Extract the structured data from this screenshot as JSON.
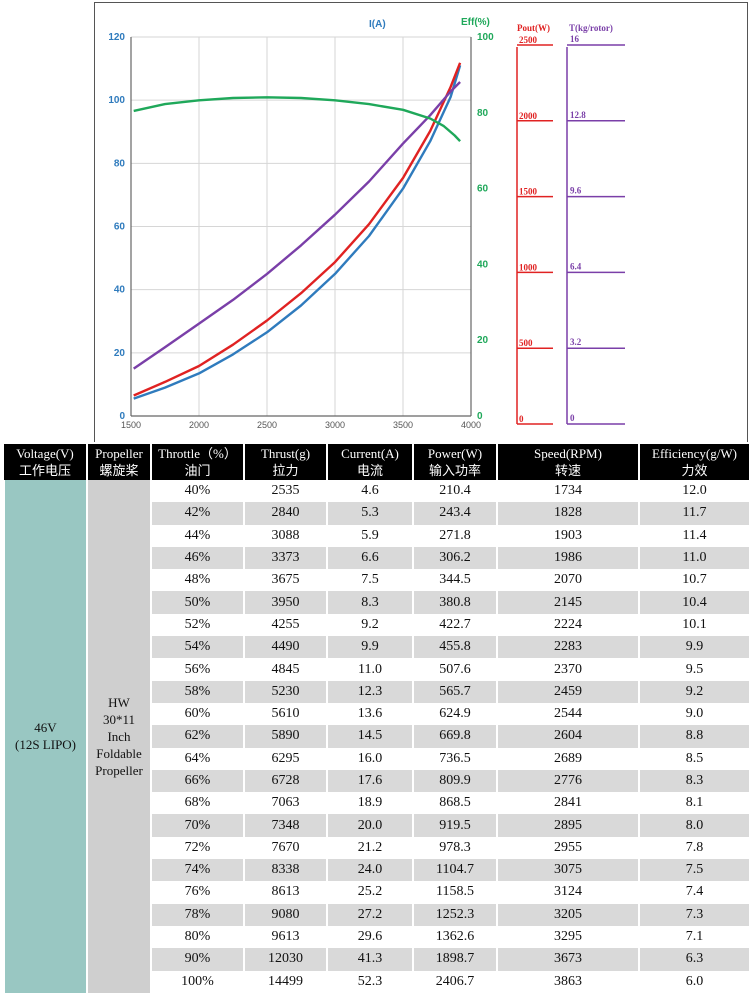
{
  "chart_data": {
    "type": "line",
    "x_axis": {
      "ticks": [
        1500,
        2000,
        2500,
        3000,
        3500,
        4000
      ],
      "range": [
        1500,
        4000
      ]
    },
    "left_axis": {
      "label": "I(A)",
      "ticks": [
        0,
        20,
        40,
        60,
        80,
        100,
        120
      ],
      "range": [
        0,
        120
      ],
      "color": "#2f7bbd"
    },
    "right_axis": {
      "label": "Eff(%)",
      "ticks": [
        0,
        20,
        40,
        60,
        80,
        100
      ],
      "range": [
        0,
        100
      ],
      "color": "#1fa85a"
    },
    "power_axis": {
      "label": "Pout(W)",
      "ticks": [
        0,
        500,
        1000,
        1500,
        2000,
        2500
      ],
      "range": [
        0,
        2500
      ],
      "color": "#e02222"
    },
    "thrust_axis": {
      "label": "T(kg/rotor)",
      "ticks": [
        "0",
        "3.2",
        "6.4",
        "9.6",
        "12.8",
        "16"
      ],
      "range": [
        0,
        16
      ],
      "color": "#7a3fa8"
    },
    "grid": true,
    "series": [
      {
        "axis": "left",
        "color": "#2f7bbd",
        "x": [
          1520,
          1750,
          2000,
          2250,
          2500,
          2750,
          3000,
          3250,
          3500,
          3700,
          3850,
          3920
        ],
        "y": [
          5.5,
          9,
          13.5,
          19.5,
          26.5,
          35,
          45,
          57,
          72,
          87,
          101,
          111
        ]
      },
      {
        "axis": "power",
        "color": "#e02222",
        "x": [
          1520,
          1750,
          2000,
          2250,
          2500,
          2750,
          3000,
          3250,
          3500,
          3700,
          3850,
          3920
        ],
        "y": [
          135,
          225,
          330,
          470,
          630,
          810,
          1015,
          1265,
          1570,
          1880,
          2170,
          2330
        ]
      },
      {
        "axis": "thrust",
        "color": "#7a3fa8",
        "x": [
          1520,
          1750,
          2000,
          2250,
          2500,
          2750,
          3000,
          3250,
          3500,
          3700,
          3850,
          3920
        ],
        "y": [
          2.0,
          2.9,
          3.9,
          4.9,
          6.0,
          7.2,
          8.5,
          9.9,
          11.5,
          12.7,
          13.7,
          14.1
        ]
      },
      {
        "axis": "right",
        "color": "#1fa85a",
        "x": [
          1520,
          1750,
          2000,
          2250,
          2500,
          2750,
          3000,
          3250,
          3500,
          3700,
          3800,
          3880,
          3920
        ],
        "y": [
          80.5,
          82.3,
          83.3,
          83.9,
          84.1,
          83.9,
          83.3,
          82.3,
          80.8,
          78.5,
          76.5,
          74.0,
          72.5
        ]
      }
    ]
  },
  "table": {
    "headers": [
      [
        "Voltage(V)",
        "工作电压"
      ],
      [
        "Propeller",
        "螺旋桨"
      ],
      [
        "Throttle（%）",
        "油门"
      ],
      [
        "Thrust(g)",
        "拉力"
      ],
      [
        "Current(A)",
        "电流"
      ],
      [
        "Power(W)",
        "输入功率"
      ],
      [
        "Speed(RPM)",
        "转速"
      ],
      [
        "Efficiency(g/W)",
        "力效"
      ]
    ],
    "voltage": [
      "46V",
      "(12S LIPO)"
    ],
    "propeller": [
      "HW",
      "30*11",
      "Inch",
      "Foldable",
      "Propeller"
    ],
    "rows": [
      [
        "40%",
        "2535",
        "4.6",
        "210.4",
        "1734",
        "12.0"
      ],
      [
        "42%",
        "2840",
        "5.3",
        "243.4",
        "1828",
        "11.7"
      ],
      [
        "44%",
        "3088",
        "5.9",
        "271.8",
        "1903",
        "11.4"
      ],
      [
        "46%",
        "3373",
        "6.6",
        "306.2",
        "1986",
        "11.0"
      ],
      [
        "48%",
        "3675",
        "7.5",
        "344.5",
        "2070",
        "10.7"
      ],
      [
        "50%",
        "3950",
        "8.3",
        "380.8",
        "2145",
        "10.4"
      ],
      [
        "52%",
        "4255",
        "9.2",
        "422.7",
        "2224",
        "10.1"
      ],
      [
        "54%",
        "4490",
        "9.9",
        "455.8",
        "2283",
        "9.9"
      ],
      [
        "56%",
        "4845",
        "11.0",
        "507.6",
        "2370",
        "9.5"
      ],
      [
        "58%",
        "5230",
        "12.3",
        "565.7",
        "2459",
        "9.2"
      ],
      [
        "60%",
        "5610",
        "13.6",
        "624.9",
        "2544",
        "9.0"
      ],
      [
        "62%",
        "5890",
        "14.5",
        "669.8",
        "2604",
        "8.8"
      ],
      [
        "64%",
        "6295",
        "16.0",
        "736.5",
        "2689",
        "8.5"
      ],
      [
        "66%",
        "6728",
        "17.6",
        "809.9",
        "2776",
        "8.3"
      ],
      [
        "68%",
        "7063",
        "18.9",
        "868.5",
        "2841",
        "8.1"
      ],
      [
        "70%",
        "7348",
        "20.0",
        "919.5",
        "2895",
        "8.0"
      ],
      [
        "72%",
        "7670",
        "21.2",
        "978.3",
        "2955",
        "7.8"
      ],
      [
        "74%",
        "8338",
        "24.0",
        "1104.7",
        "3075",
        "7.5"
      ],
      [
        "76%",
        "8613",
        "25.2",
        "1158.5",
        "3124",
        "7.4"
      ],
      [
        "78%",
        "9080",
        "27.2",
        "1252.3",
        "3205",
        "7.3"
      ],
      [
        "80%",
        "9613",
        "29.6",
        "1362.6",
        "3295",
        "7.1"
      ],
      [
        "90%",
        "12030",
        "41.3",
        "1898.7",
        "3673",
        "6.3"
      ],
      [
        "100%",
        "14499",
        "52.3",
        "2406.7",
        "3863",
        "6.0"
      ]
    ]
  }
}
